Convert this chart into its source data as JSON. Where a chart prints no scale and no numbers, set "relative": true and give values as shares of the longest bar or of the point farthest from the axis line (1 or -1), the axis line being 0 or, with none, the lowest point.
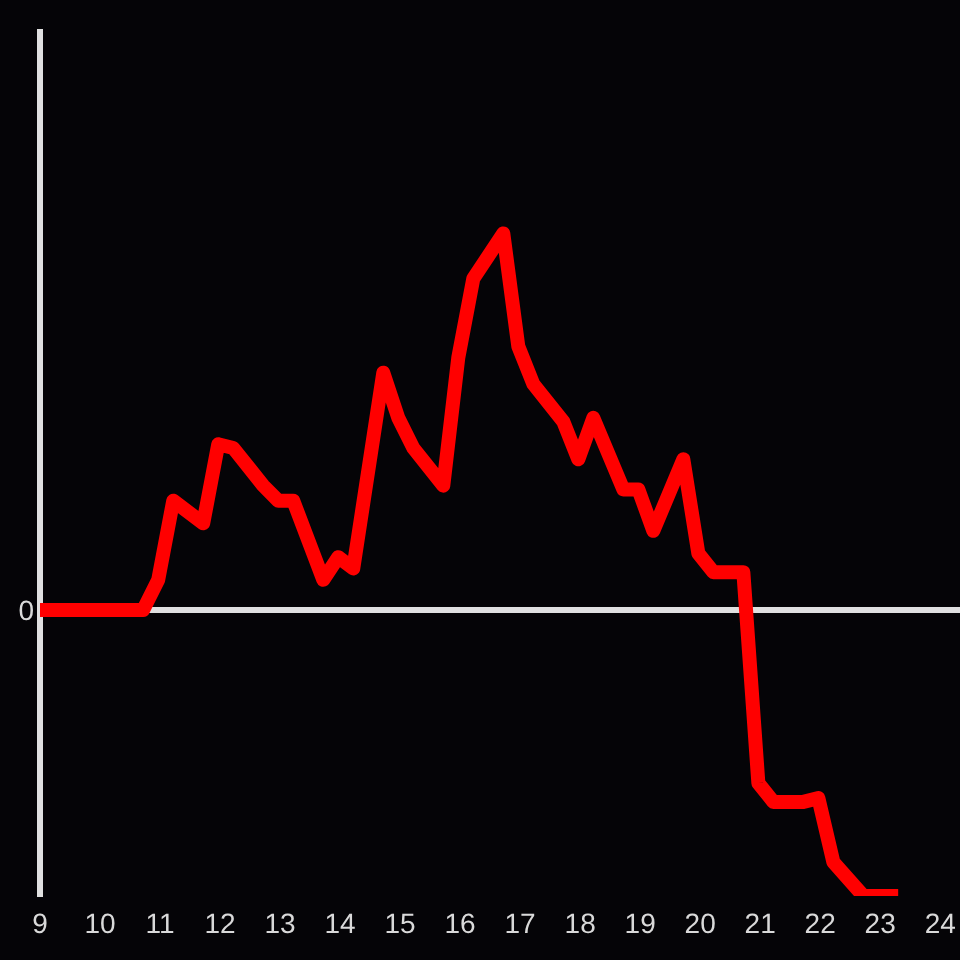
{
  "chart_data": {
    "type": "line",
    "relative": true,
    "x": [
      9,
      10.72,
      10.97,
      11.22,
      11.72,
      11.97,
      12.22,
      12.72,
      12.97,
      13.22,
      13.72,
      13.97,
      14.22,
      14.72,
      14.97,
      15.22,
      15.72,
      15.97,
      16.22,
      16.72,
      16.97,
      17.22,
      17.72,
      17.97,
      18.22,
      18.72,
      18.97,
      19.22,
      19.72,
      19.97,
      20.22,
      20.72,
      20.97,
      21.22,
      21.72,
      21.97,
      22.22,
      22.72,
      23.3
    ],
    "values": [
      0,
      0,
      0.08,
      0.29,
      0.23,
      0.44,
      0.43,
      0.33,
      0.29,
      0.29,
      0.08,
      0.14,
      0.11,
      0.63,
      0.51,
      0.43,
      0.33,
      0.67,
      0.88,
      1,
      0.7,
      0.6,
      0.5,
      0.4,
      0.51,
      0.32,
      0.32,
      0.21,
      0.4,
      0.15,
      0.1,
      0.1,
      -0.46,
      -0.51,
      -0.51,
      -0.5,
      -0.67,
      -0.76,
      -0.76
    ],
    "color": "#ff0000",
    "xlim": [
      9,
      24.33
    ],
    "xticks": [
      9,
      10,
      11,
      12,
      13,
      14,
      15,
      16,
      17,
      18,
      19,
      20,
      21,
      22,
      23,
      24
    ],
    "ref_lines": [
      {
        "axis": "y",
        "value": 0,
        "label": "0",
        "color": "#e0e0e0"
      }
    ],
    "marker": "none",
    "line_style": "solid",
    "grid": false,
    "legend": false
  }
}
